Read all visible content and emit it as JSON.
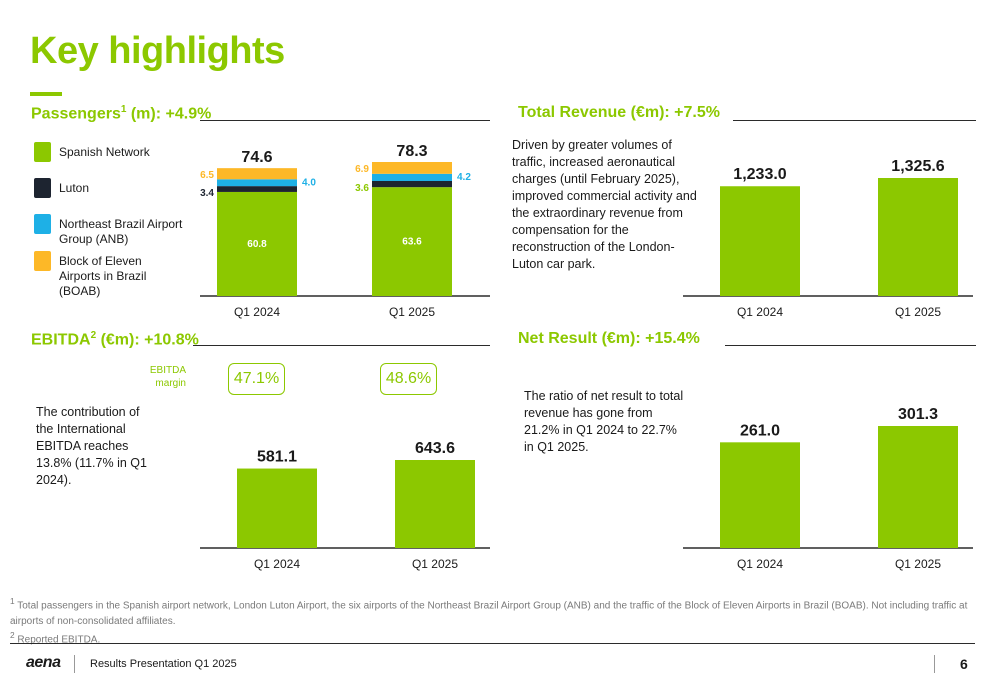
{
  "title": "Key highlights",
  "colors": {
    "spanish": "#8cc800",
    "luton": "#1d2430",
    "anb": "#1eb0e6",
    "boab": "#fdb827",
    "accent": "#8cc800"
  },
  "sections": {
    "passengers": {
      "label": "Passengers",
      "sup": "1",
      "suffix": " (m): +4.9%"
    },
    "revenue": {
      "label": "Total Revenue (€m): +7.5%"
    },
    "ebitda": {
      "label": "EBITDA",
      "sup": "2",
      "suffix": " (€m): +10.8%"
    },
    "net": {
      "label": "Net Result (€m): +15.4%"
    }
  },
  "legend": [
    {
      "label": "Spanish Network",
      "color": "#8cc800"
    },
    {
      "label": "Luton",
      "color": "#1d2430"
    },
    {
      "label": "Northeast Brazil Airport Group (ANB)",
      "color": "#1eb0e6"
    },
    {
      "label": "Block of Eleven Airports in Brazil (BOAB)",
      "color": "#fdb827"
    }
  ],
  "texts": {
    "revenue": "Driven by greater volumes of traffic, increased aeronautical charges (until February 2025), improved commercial activity and the extraordinary revenue from compensation for the reconstruction of the London-Luton car park.",
    "ebitda": "The contribution of the International EBITDA reaches 13.8% (11.7% in Q1 2024).",
    "net": "The ratio of net result to total revenue has gone from 21.2% in Q1 2024 to 22.7% in Q1 2025."
  },
  "ebitda_margin": {
    "label_line1": "EBITDA",
    "label_line2": "margin",
    "values": [
      "47.1%",
      "48.6%"
    ]
  },
  "chart_data": [
    {
      "type": "bar",
      "stacked": true,
      "title": "Passengers (m): +4.9%",
      "categories": [
        "Q1 2024",
        "Q1 2025"
      ],
      "totals": [
        "74.6",
        "78.3"
      ],
      "series": [
        {
          "name": "Spanish Network",
          "values": [
            60.8,
            63.6
          ],
          "color": "#8cc800"
        },
        {
          "name": "Luton",
          "values": [
            3.4,
            3.6
          ],
          "color": "#1d2430"
        },
        {
          "name": "Northeast Brazil Airport Group (ANB)",
          "values": [
            4.0,
            4.2
          ],
          "color": "#1eb0e6"
        },
        {
          "name": "Block of Eleven Airports in Brazil (BOAB)",
          "values": [
            6.5,
            6.9
          ],
          "color": "#fdb827"
        }
      ]
    },
    {
      "type": "bar",
      "title": "Total Revenue (€m): +7.5%",
      "categories": [
        "Q1 2024",
        "Q1 2025"
      ],
      "values": [
        1233.0,
        1325.6
      ],
      "labels": [
        "1,233.0",
        "1,325.6"
      ]
    },
    {
      "type": "bar",
      "title": "EBITDA (€m): +10.8%",
      "categories": [
        "Q1 2024",
        "Q1 2025"
      ],
      "values": [
        581.1,
        643.6
      ],
      "labels": [
        "581.1",
        "643.6"
      ]
    },
    {
      "type": "bar",
      "title": "Net Result (€m): +15.4%",
      "categories": [
        "Q1 2024",
        "Q1 2025"
      ],
      "values": [
        261.0,
        301.3
      ],
      "labels": [
        "261.0",
        "301.3"
      ]
    }
  ],
  "footnotes": {
    "fn1_num": "1",
    "fn1": "Total passengers in the Spanish airport network, London Luton Airport, the six airports of the Northeast Brazil Airport Group (ANB) and the traffic of the Block of Eleven Airports in Brazil (BOAB). Not including traffic at airports of non-consolidated affiliates.",
    "fn2_num": "2",
    "fn2": "Reported EBITDA."
  },
  "footer": {
    "logo": "aena",
    "text": "Results Presentation Q1 2025",
    "page": "6"
  }
}
